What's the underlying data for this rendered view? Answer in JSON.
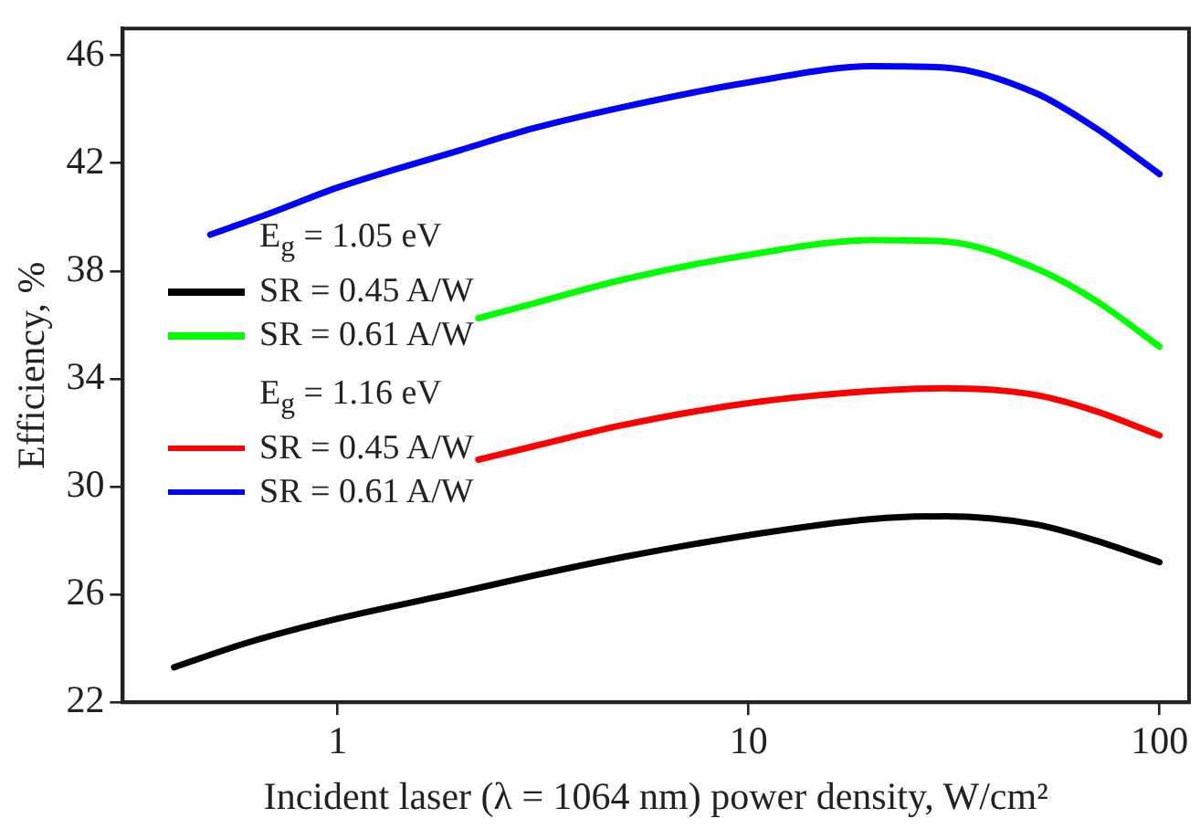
{
  "chart_data": {
    "type": "line",
    "xlabel": "Incident laser (λ = 1064 nm) power density, W/cm²",
    "ylabel": "Efficiency, %",
    "log": "x",
    "xlim": [
      0.3,
      118
    ],
    "xticks": [
      1,
      10,
      100
    ],
    "ylim": [
      22,
      47
    ],
    "yticks": [
      22,
      26,
      30,
      34,
      38,
      42,
      46
    ],
    "grid": false,
    "legend": "left",
    "marker": "none",
    "line_style": "solid",
    "annotations": [
      "E$_{g}$ = 1.05 eV",
      "E$_{g}$ = 1.16 eV"
    ],
    "series": [
      {
        "name": "SR = 0.45 A/W",
        "color": "#000000",
        "x": [
          0.4,
          0.6,
          1,
          2,
          3,
          5,
          10,
          20,
          30,
          50,
          70,
          100
        ],
        "values": [
          23.3,
          24.2,
          25.1,
          26.1,
          26.7,
          27.4,
          28.2,
          28.8,
          28.9,
          28.6,
          28.0,
          27.2
        ]
      },
      {
        "name": "SR = 0.61 A/W",
        "color": "#00ff00",
        "x": [
          2.2,
          3,
          5,
          10,
          20,
          30,
          50,
          70,
          100
        ],
        "values": [
          36.25,
          36.8,
          37.7,
          38.6,
          39.15,
          39.1,
          38.1,
          36.9,
          35.2
        ]
      },
      {
        "name": "SR = 0.45 A/W",
        "color": "#ff0000",
        "x": [
          2.2,
          3,
          5,
          10,
          20,
          30,
          50,
          70,
          100
        ],
        "values": [
          31.0,
          31.5,
          32.3,
          33.1,
          33.55,
          33.65,
          33.4,
          32.8,
          31.9
        ]
      },
      {
        "name": "SR = 0.61 A/W",
        "color": "#0000ff",
        "x": [
          0.49,
          0.7,
          1,
          2,
          3,
          5,
          10,
          20,
          30,
          50,
          70,
          100
        ],
        "values": [
          39.35,
          40.2,
          41.1,
          42.5,
          43.3,
          44.1,
          45.0,
          45.6,
          45.55,
          44.6,
          43.3,
          41.6
        ]
      }
    ]
  }
}
